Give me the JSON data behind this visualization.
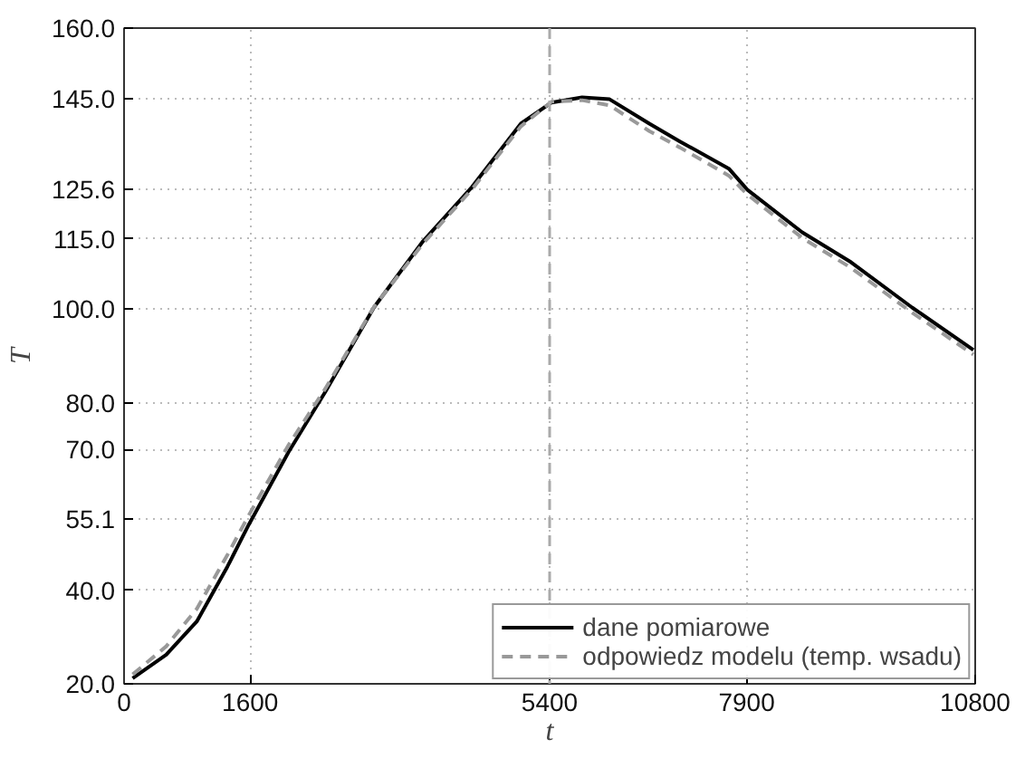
{
  "chart_data": {
    "type": "line",
    "xlabel": "t",
    "ylabel": "T",
    "x": [
      109,
      535,
      923,
      1311,
      1583,
      2088,
      2553,
      3172,
      3794,
      4416,
      5035,
      5424,
      5812,
      6161,
      6665,
      7053,
      7674,
      7907,
      8605,
      9225,
      10003,
      10777
    ],
    "series": [
      {
        "name": "dane pomiarowe",
        "color": "#000000",
        "line_style": "solid",
        "values": [
          21.2,
          26.2,
          33.3,
          45.0,
          54.0,
          69.5,
          82.3,
          100.4,
          114.5,
          126.1,
          139.6,
          144.1,
          145.2,
          144.8,
          139.6,
          135.8,
          130.0,
          125.5,
          116.4,
          110.0,
          100.3,
          91.3
        ]
      },
      {
        "name": "odpowiedz modelu (temp. wsadu)",
        "color": "#999999",
        "line_style": "dashed",
        "values": [
          22.0,
          28.0,
          36.0,
          47.5,
          56.0,
          71.0,
          83.0,
          100.5,
          114.0,
          125.6,
          139.0,
          144.3,
          144.6,
          143.5,
          138.0,
          134.5,
          128.5,
          124.5,
          115.2,
          108.8,
          99.2,
          90.3
        ]
      }
    ],
    "xlim": [
      0,
      10800
    ],
    "xticks": [
      0,
      1600,
      5400,
      7900,
      10800
    ],
    "ylim": [
      20,
      160
    ],
    "yticks": [
      {
        "value": 20,
        "label": "20.0"
      },
      {
        "value": 40,
        "label": "40.0"
      },
      {
        "value": 55.1,
        "label": "55.1"
      },
      {
        "value": 70,
        "label": "70.0"
      },
      {
        "value": 80,
        "label": "80.0"
      },
      {
        "value": 100,
        "label": "100.0"
      },
      {
        "value": 115,
        "label": "115.0"
      },
      {
        "value": 125.6,
        "label": "125.6"
      },
      {
        "value": 145,
        "label": "145.0"
      },
      {
        "value": 160,
        "label": "160.0"
      }
    ],
    "ref_lines": [
      {
        "axis": "x",
        "value": 5400,
        "label": null,
        "color": "#aaaaaa",
        "line_style": "dashed"
      }
    ],
    "grid": true,
    "legend": "bottom right"
  }
}
